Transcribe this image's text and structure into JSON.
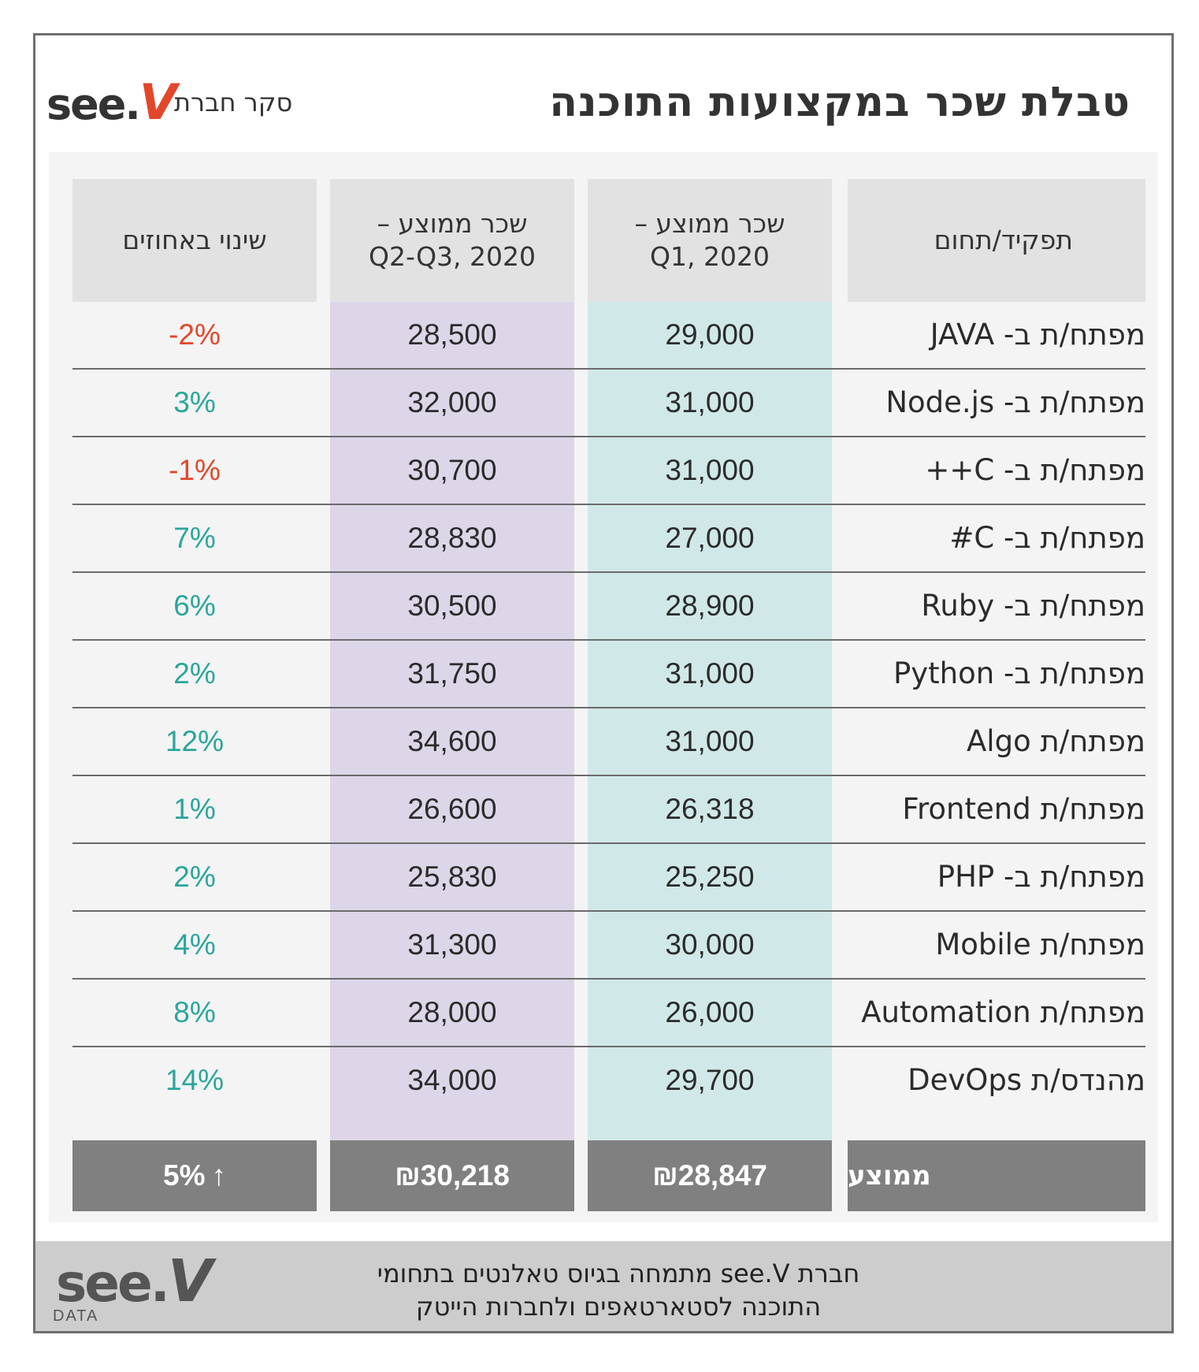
{
  "header": {
    "title": "טבלת שכר במקצועות התוכנה",
    "brand_logo_prefix": "see.",
    "brand_logo_v": "V",
    "brand_survey": "סקר חברת"
  },
  "table": {
    "columns": {
      "role": "תפקיד/תחום",
      "q1": "שכר ממוצע –\nQ1, 2020",
      "q2": "שכר ממוצע –\nQ2-Q3, 2020",
      "change": "שינוי באחוזים"
    },
    "rows": [
      {
        "role": "מפתח/ת ב- JAVA",
        "q1": "29,000",
        "q2": "28,500",
        "change": "-2%",
        "trend": "neg"
      },
      {
        "role": "מפתח/ת ב- Node.js",
        "q1": "31,000",
        "q2": "32,000",
        "change": "3%",
        "trend": "pos"
      },
      {
        "role": "מפתח/ת ב- C++",
        "q1": "31,000",
        "q2": "30,700",
        "change": "-1%",
        "trend": "neg"
      },
      {
        "role": "מפתח/ת ב- C#",
        "q1": "27,000",
        "q2": "28,830",
        "change": "7%",
        "trend": "pos"
      },
      {
        "role": "מפתח/ת ב- Ruby",
        "q1": "28,900",
        "q2": "30,500",
        "change": "6%",
        "trend": "pos"
      },
      {
        "role": "מפתח/ת ב- Python",
        "q1": "31,000",
        "q2": "31,750",
        "change": "2%",
        "trend": "pos"
      },
      {
        "role": "מפתח/ת Algo",
        "q1": "31,000",
        "q2": "34,600",
        "change": "12%",
        "trend": "pos"
      },
      {
        "role": "מפתח/ת Frontend",
        "q1": "26,318",
        "q2": "26,600",
        "change": "1%",
        "trend": "pos"
      },
      {
        "role": "מפתח/ת ב- PHP",
        "q1": "25,250",
        "q2": "25,830",
        "change": "2%",
        "trend": "pos"
      },
      {
        "role": "מפתח/ת Mobile",
        "q1": "30,000",
        "q2": "31,300",
        "change": "4%",
        "trend": "pos"
      },
      {
        "role": "מפתח/ת Automation",
        "q1": "26,000",
        "q2": "28,000",
        "change": "8%",
        "trend": "pos"
      },
      {
        "role": "מהנדס/ת DevOps",
        "q1": "29,700",
        "q2": "34,000",
        "change": "14%",
        "trend": "pos"
      }
    ],
    "average": {
      "label": "ממוצע",
      "q1": "₪28,847",
      "q2": "₪30,218",
      "change": "5%",
      "arrow": "↑"
    }
  },
  "footer": {
    "logo_prefix": "see.",
    "logo_v": "V",
    "logo_sub": "DATA",
    "text_line1": "חברת see.V מתמחה בגיוס טאלנטים בתחומי",
    "text_line2": "התוכנה לסטארטאפים ולחברות הייטק"
  },
  "colors": {
    "accent_red": "#e2472a",
    "accent_teal": "#2aa69b",
    "q1_column": "#d0e9e8",
    "q2_column": "#ddd6e8",
    "average_bar": "#808080"
  }
}
